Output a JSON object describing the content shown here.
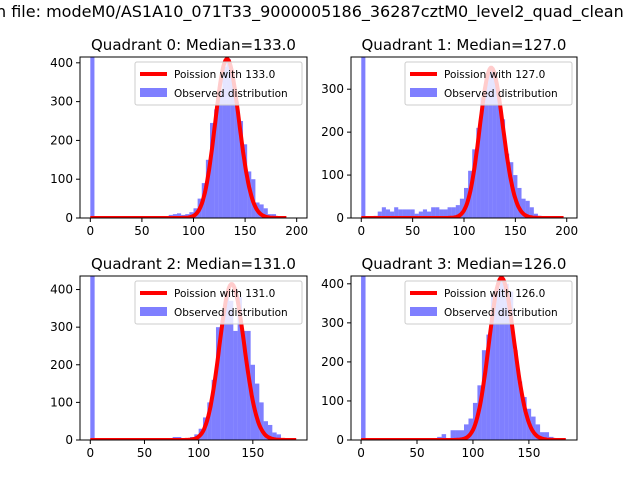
{
  "suptitle": "n file: modeM0/AS1A10_071T33_9000005186_36287cztM0_level2_quad_clean",
  "colors": {
    "bars": "#0000ff",
    "curve": "#ff0000"
  },
  "legend": {
    "curve_label_prefix": "Poission with ",
    "bars_label": "Observed distribution"
  },
  "chart_data": [
    {
      "type": "bar",
      "title": "Quadrant 0: Median=133.0",
      "poisson_label": "Poission with 133.0",
      "median": 133.0,
      "xlim": [
        -10,
        210
      ],
      "ylim": [
        0,
        415
      ],
      "xticks": [
        0,
        50,
        100,
        150,
        200
      ],
      "yticks": [
        0,
        100,
        200,
        300,
        400
      ],
      "bin_width": 4,
      "bins": [
        [
          0,
          2000
        ],
        [
          72,
          5
        ],
        [
          76,
          8
        ],
        [
          80,
          10
        ],
        [
          84,
          12
        ],
        [
          88,
          8
        ],
        [
          92,
          10
        ],
        [
          96,
          15
        ],
        [
          100,
          25
        ],
        [
          104,
          50
        ],
        [
          108,
          90
        ],
        [
          112,
          150
        ],
        [
          116,
          245
        ],
        [
          120,
          280
        ],
        [
          124,
          330
        ],
        [
          128,
          390
        ],
        [
          132,
          410
        ],
        [
          136,
          370
        ],
        [
          140,
          300
        ],
        [
          144,
          250
        ],
        [
          148,
          190
        ],
        [
          152,
          120
        ],
        [
          156,
          100
        ],
        [
          160,
          40
        ],
        [
          164,
          35
        ],
        [
          168,
          25
        ],
        [
          172,
          10
        ],
        [
          176,
          10
        ],
        [
          180,
          5
        ]
      ],
      "poisson_scale": 11850,
      "curve_x_max": 190
    },
    {
      "type": "bar",
      "title": "Quadrant 1: Median=127.0",
      "poisson_label": "Poission with 127.0",
      "median": 127.0,
      "xlim": [
        -10,
        210
      ],
      "ylim": [
        0,
        375
      ],
      "xticks": [
        0,
        50,
        100,
        150,
        200
      ],
      "yticks": [
        0,
        100,
        200,
        300
      ],
      "bin_width": 4,
      "bins": [
        [
          0,
          2000
        ],
        [
          12,
          5
        ],
        [
          16,
          15
        ],
        [
          20,
          25
        ],
        [
          24,
          20
        ],
        [
          28,
          15
        ],
        [
          32,
          25
        ],
        [
          36,
          20
        ],
        [
          40,
          20
        ],
        [
          44,
          20
        ],
        [
          48,
          20
        ],
        [
          52,
          10
        ],
        [
          56,
          15
        ],
        [
          60,
          20
        ],
        [
          64,
          15
        ],
        [
          68,
          25
        ],
        [
          72,
          25
        ],
        [
          76,
          20
        ],
        [
          80,
          20
        ],
        [
          84,
          25
        ],
        [
          88,
          25
        ],
        [
          92,
          30
        ],
        [
          96,
          45
        ],
        [
          100,
          70
        ],
        [
          104,
          110
        ],
        [
          108,
          160
        ],
        [
          112,
          210
        ],
        [
          116,
          280
        ],
        [
          120,
          330
        ],
        [
          124,
          350
        ],
        [
          128,
          330
        ],
        [
          132,
          280
        ],
        [
          136,
          230
        ],
        [
          140,
          150
        ],
        [
          144,
          130
        ],
        [
          148,
          100
        ],
        [
          152,
          70
        ],
        [
          156,
          45
        ],
        [
          160,
          40
        ],
        [
          164,
          25
        ],
        [
          168,
          10
        ],
        [
          172,
          5
        ]
      ],
      "poisson_scale": 9890,
      "curve_x_max": 197
    },
    {
      "type": "bar",
      "title": "Quadrant 2: Median=131.0",
      "poisson_label": "Poission with 131.0",
      "median": 131.0,
      "xlim": [
        -9.5,
        200
      ],
      "ylim": [
        0,
        436
      ],
      "xticks": [
        0,
        50,
        100,
        150
      ],
      "yticks": [
        0,
        100,
        200,
        300,
        400
      ],
      "bin_width": 4,
      "bins": [
        [
          0,
          2000
        ],
        [
          68,
          5
        ],
        [
          76,
          8
        ],
        [
          80,
          8
        ],
        [
          88,
          5
        ],
        [
          92,
          8
        ],
        [
          96,
          15
        ],
        [
          100,
          30
        ],
        [
          104,
          60
        ],
        [
          108,
          100
        ],
        [
          112,
          160
        ],
        [
          116,
          300
        ],
        [
          120,
          320
        ],
        [
          124,
          390
        ],
        [
          128,
          370
        ],
        [
          132,
          290
        ],
        [
          136,
          380
        ],
        [
          140,
          290
        ],
        [
          144,
          290
        ],
        [
          148,
          200
        ],
        [
          152,
          150
        ],
        [
          156,
          100
        ],
        [
          160,
          50
        ],
        [
          164,
          40
        ],
        [
          168,
          20
        ],
        [
          172,
          15
        ],
        [
          176,
          5
        ]
      ],
      "poisson_scale": 11900,
      "curve_x_max": 190
    },
    {
      "type": "bar",
      "title": "Quadrant 3: Median=126.0",
      "poisson_label": "Poission with 126.0",
      "median": 126.0,
      "xlim": [
        -9,
        193
      ],
      "ylim": [
        0,
        420
      ],
      "xticks": [
        0,
        50,
        100,
        150
      ],
      "yticks": [
        0,
        100,
        200,
        300,
        400
      ],
      "bin_width": 4,
      "bins": [
        [
          0,
          2000
        ],
        [
          44,
          5
        ],
        [
          68,
          8
        ],
        [
          72,
          15
        ],
        [
          76,
          5
        ],
        [
          80,
          25
        ],
        [
          84,
          25
        ],
        [
          88,
          25
        ],
        [
          92,
          40
        ],
        [
          96,
          55
        ],
        [
          100,
          95
        ],
        [
          104,
          140
        ],
        [
          108,
          230
        ],
        [
          112,
          270
        ],
        [
          116,
          370
        ],
        [
          120,
          390
        ],
        [
          124,
          410
        ],
        [
          128,
          400
        ],
        [
          132,
          380
        ],
        [
          136,
          230
        ],
        [
          140,
          150
        ],
        [
          144,
          110
        ],
        [
          148,
          80
        ],
        [
          152,
          60
        ],
        [
          156,
          40
        ],
        [
          160,
          20
        ],
        [
          164,
          20
        ],
        [
          168,
          8
        ],
        [
          176,
          5
        ]
      ],
      "poisson_scale": 11690,
      "curve_x_max": 183
    }
  ]
}
